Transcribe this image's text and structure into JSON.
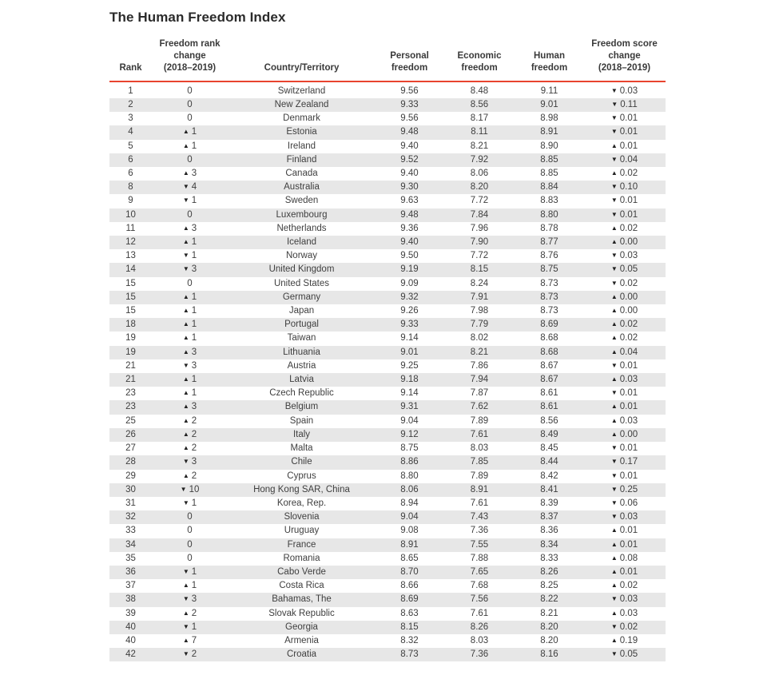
{
  "title": "The Human Freedom Index",
  "colors": {
    "accent_rule": "#e8442f",
    "row_stripe": "#e7e7e7",
    "text": "#3f3f3f",
    "triangle": "#222222"
  },
  "icons": {
    "up": "▲",
    "down": "▼"
  },
  "chart_data": {
    "type": "table",
    "title": "The Human Freedom Index",
    "columns": [
      "Rank",
      "Freedom rank\nchange\n(2018–2019)",
      "Country/Territory",
      "Personal\nfreedom",
      "Economic\nfreedom",
      "Human\nfreedom",
      "Freedom score\nchange\n(2018–2019)"
    ],
    "rows": [
      {
        "rank": "1",
        "rank_change": {
          "dir": "none",
          "value": "0"
        },
        "country": "Switzerland",
        "personal": "9.56",
        "economic": "8.48",
        "human": "9.11",
        "score_change": {
          "dir": "down",
          "value": "0.03"
        }
      },
      {
        "rank": "2",
        "rank_change": {
          "dir": "none",
          "value": "0"
        },
        "country": "New Zealand",
        "personal": "9.33",
        "economic": "8.56",
        "human": "9.01",
        "score_change": {
          "dir": "down",
          "value": "0.11"
        }
      },
      {
        "rank": "3",
        "rank_change": {
          "dir": "none",
          "value": "0"
        },
        "country": "Denmark",
        "personal": "9.56",
        "economic": "8.17",
        "human": "8.98",
        "score_change": {
          "dir": "down",
          "value": "0.01"
        }
      },
      {
        "rank": "4",
        "rank_change": {
          "dir": "up",
          "value": "1"
        },
        "country": "Estonia",
        "personal": "9.48",
        "economic": "8.11",
        "human": "8.91",
        "score_change": {
          "dir": "down",
          "value": "0.01"
        }
      },
      {
        "rank": "5",
        "rank_change": {
          "dir": "up",
          "value": "1"
        },
        "country": "Ireland",
        "personal": "9.40",
        "economic": "8.21",
        "human": "8.90",
        "score_change": {
          "dir": "up",
          "value": "0.01"
        }
      },
      {
        "rank": "6",
        "rank_change": {
          "dir": "none",
          "value": "0"
        },
        "country": "Finland",
        "personal": "9.52",
        "economic": "7.92",
        "human": "8.85",
        "score_change": {
          "dir": "down",
          "value": "0.04"
        }
      },
      {
        "rank": "6",
        "rank_change": {
          "dir": "up",
          "value": "3"
        },
        "country": "Canada",
        "personal": "9.40",
        "economic": "8.06",
        "human": "8.85",
        "score_change": {
          "dir": "up",
          "value": "0.02"
        }
      },
      {
        "rank": "8",
        "rank_change": {
          "dir": "down",
          "value": "4"
        },
        "country": "Australia",
        "personal": "9.30",
        "economic": "8.20",
        "human": "8.84",
        "score_change": {
          "dir": "down",
          "value": "0.10"
        }
      },
      {
        "rank": "9",
        "rank_change": {
          "dir": "down",
          "value": "1"
        },
        "country": "Sweden",
        "personal": "9.63",
        "economic": "7.72",
        "human": "8.83",
        "score_change": {
          "dir": "down",
          "value": "0.01"
        }
      },
      {
        "rank": "10",
        "rank_change": {
          "dir": "none",
          "value": "0"
        },
        "country": "Luxembourg",
        "personal": "9.48",
        "economic": "7.84",
        "human": "8.80",
        "score_change": {
          "dir": "down",
          "value": "0.01"
        }
      },
      {
        "rank": "11",
        "rank_change": {
          "dir": "up",
          "value": "3"
        },
        "country": "Netherlands",
        "personal": "9.36",
        "economic": "7.96",
        "human": "8.78",
        "score_change": {
          "dir": "up",
          "value": "0.02"
        }
      },
      {
        "rank": "12",
        "rank_change": {
          "dir": "up",
          "value": "1"
        },
        "country": "Iceland",
        "personal": "9.40",
        "economic": "7.90",
        "human": "8.77",
        "score_change": {
          "dir": "up",
          "value": "0.00"
        }
      },
      {
        "rank": "13",
        "rank_change": {
          "dir": "down",
          "value": "1"
        },
        "country": "Norway",
        "personal": "9.50",
        "economic": "7.72",
        "human": "8.76",
        "score_change": {
          "dir": "down",
          "value": "0.03"
        }
      },
      {
        "rank": "14",
        "rank_change": {
          "dir": "down",
          "value": "3"
        },
        "country": "United Kingdom",
        "personal": "9.19",
        "economic": "8.15",
        "human": "8.75",
        "score_change": {
          "dir": "down",
          "value": "0.05"
        }
      },
      {
        "rank": "15",
        "rank_change": {
          "dir": "none",
          "value": "0"
        },
        "country": "United States",
        "personal": "9.09",
        "economic": "8.24",
        "human": "8.73",
        "score_change": {
          "dir": "down",
          "value": "0.02"
        }
      },
      {
        "rank": "15",
        "rank_change": {
          "dir": "up",
          "value": "1"
        },
        "country": "Germany",
        "personal": "9.32",
        "economic": "7.91",
        "human": "8.73",
        "score_change": {
          "dir": "up",
          "value": "0.00"
        }
      },
      {
        "rank": "15",
        "rank_change": {
          "dir": "up",
          "value": "1"
        },
        "country": "Japan",
        "personal": "9.26",
        "economic": "7.98",
        "human": "8.73",
        "score_change": {
          "dir": "up",
          "value": "0.00"
        }
      },
      {
        "rank": "18",
        "rank_change": {
          "dir": "up",
          "value": "1"
        },
        "country": "Portugal",
        "personal": "9.33",
        "economic": "7.79",
        "human": "8.69",
        "score_change": {
          "dir": "up",
          "value": "0.02"
        }
      },
      {
        "rank": "19",
        "rank_change": {
          "dir": "up",
          "value": "1"
        },
        "country": "Taiwan",
        "personal": "9.14",
        "economic": "8.02",
        "human": "8.68",
        "score_change": {
          "dir": "up",
          "value": "0.02"
        }
      },
      {
        "rank": "19",
        "rank_change": {
          "dir": "up",
          "value": "3"
        },
        "country": "Lithuania",
        "personal": "9.01",
        "economic": "8.21",
        "human": "8.68",
        "score_change": {
          "dir": "up",
          "value": "0.04"
        }
      },
      {
        "rank": "21",
        "rank_change": {
          "dir": "down",
          "value": "3"
        },
        "country": "Austria",
        "personal": "9.25",
        "economic": "7.86",
        "human": "8.67",
        "score_change": {
          "dir": "down",
          "value": "0.01"
        }
      },
      {
        "rank": "21",
        "rank_change": {
          "dir": "up",
          "value": "1"
        },
        "country": "Latvia",
        "personal": "9.18",
        "economic": "7.94",
        "human": "8.67",
        "score_change": {
          "dir": "up",
          "value": "0.03"
        }
      },
      {
        "rank": "23",
        "rank_change": {
          "dir": "up",
          "value": "1"
        },
        "country": "Czech Republic",
        "personal": "9.14",
        "economic": "7.87",
        "human": "8.61",
        "score_change": {
          "dir": "down",
          "value": "0.01"
        }
      },
      {
        "rank": "23",
        "rank_change": {
          "dir": "up",
          "value": "3"
        },
        "country": "Belgium",
        "personal": "9.31",
        "economic": "7.62",
        "human": "8.61",
        "score_change": {
          "dir": "up",
          "value": "0.01"
        }
      },
      {
        "rank": "25",
        "rank_change": {
          "dir": "up",
          "value": "2"
        },
        "country": "Spain",
        "personal": "9.04",
        "economic": "7.89",
        "human": "8.56",
        "score_change": {
          "dir": "up",
          "value": "0.03"
        }
      },
      {
        "rank": "26",
        "rank_change": {
          "dir": "up",
          "value": "2"
        },
        "country": "Italy",
        "personal": "9.12",
        "economic": "7.61",
        "human": "8.49",
        "score_change": {
          "dir": "up",
          "value": "0.00"
        }
      },
      {
        "rank": "27",
        "rank_change": {
          "dir": "up",
          "value": "2"
        },
        "country": "Malta",
        "personal": "8.75",
        "economic": "8.03",
        "human": "8.45",
        "score_change": {
          "dir": "down",
          "value": "0.01"
        }
      },
      {
        "rank": "28",
        "rank_change": {
          "dir": "down",
          "value": "3"
        },
        "country": "Chile",
        "personal": "8.86",
        "economic": "7.85",
        "human": "8.44",
        "score_change": {
          "dir": "down",
          "value": "0.17"
        }
      },
      {
        "rank": "29",
        "rank_change": {
          "dir": "up",
          "value": "2"
        },
        "country": "Cyprus",
        "personal": "8.80",
        "economic": "7.89",
        "human": "8.42",
        "score_change": {
          "dir": "down",
          "value": "0.01"
        }
      },
      {
        "rank": "30",
        "rank_change": {
          "dir": "down",
          "value": "10"
        },
        "country": "Hong Kong SAR, China",
        "personal": "8.06",
        "economic": "8.91",
        "human": "8.41",
        "score_change": {
          "dir": "down",
          "value": "0.25"
        }
      },
      {
        "rank": "31",
        "rank_change": {
          "dir": "down",
          "value": "1"
        },
        "country": "Korea, Rep.",
        "personal": "8.94",
        "economic": "7.61",
        "human": "8.39",
        "score_change": {
          "dir": "down",
          "value": "0.06"
        }
      },
      {
        "rank": "32",
        "rank_change": {
          "dir": "none",
          "value": "0"
        },
        "country": "Slovenia",
        "personal": "9.04",
        "economic": "7.43",
        "human": "8.37",
        "score_change": {
          "dir": "down",
          "value": "0.03"
        }
      },
      {
        "rank": "33",
        "rank_change": {
          "dir": "none",
          "value": "0"
        },
        "country": "Uruguay",
        "personal": "9.08",
        "economic": "7.36",
        "human": "8.36",
        "score_change": {
          "dir": "up",
          "value": "0.01"
        }
      },
      {
        "rank": "34",
        "rank_change": {
          "dir": "none",
          "value": "0"
        },
        "country": "France",
        "personal": "8.91",
        "economic": "7.55",
        "human": "8.34",
        "score_change": {
          "dir": "up",
          "value": "0.01"
        }
      },
      {
        "rank": "35",
        "rank_change": {
          "dir": "none",
          "value": "0"
        },
        "country": "Romania",
        "personal": "8.65",
        "economic": "7.88",
        "human": "8.33",
        "score_change": {
          "dir": "up",
          "value": "0.08"
        }
      },
      {
        "rank": "36",
        "rank_change": {
          "dir": "down",
          "value": "1"
        },
        "country": "Cabo Verde",
        "personal": "8.70",
        "economic": "7.65",
        "human": "8.26",
        "score_change": {
          "dir": "up",
          "value": "0.01"
        }
      },
      {
        "rank": "37",
        "rank_change": {
          "dir": "up",
          "value": "1"
        },
        "country": "Costa Rica",
        "personal": "8.66",
        "economic": "7.68",
        "human": "8.25",
        "score_change": {
          "dir": "up",
          "value": "0.02"
        }
      },
      {
        "rank": "38",
        "rank_change": {
          "dir": "down",
          "value": "3"
        },
        "country": "Bahamas, The",
        "personal": "8.69",
        "economic": "7.56",
        "human": "8.22",
        "score_change": {
          "dir": "down",
          "value": "0.03"
        }
      },
      {
        "rank": "39",
        "rank_change": {
          "dir": "up",
          "value": "2"
        },
        "country": "Slovak Republic",
        "personal": "8.63",
        "economic": "7.61",
        "human": "8.21",
        "score_change": {
          "dir": "up",
          "value": "0.03"
        }
      },
      {
        "rank": "40",
        "rank_change": {
          "dir": "down",
          "value": "1"
        },
        "country": "Georgia",
        "personal": "8.15",
        "economic": "8.26",
        "human": "8.20",
        "score_change": {
          "dir": "down",
          "value": "0.02"
        }
      },
      {
        "rank": "40",
        "rank_change": {
          "dir": "up",
          "value": "7"
        },
        "country": "Armenia",
        "personal": "8.32",
        "economic": "8.03",
        "human": "8.20",
        "score_change": {
          "dir": "up",
          "value": "0.19"
        }
      },
      {
        "rank": "42",
        "rank_change": {
          "dir": "down",
          "value": "2"
        },
        "country": "Croatia",
        "personal": "8.73",
        "economic": "7.36",
        "human": "8.16",
        "score_change": {
          "dir": "down",
          "value": "0.05"
        }
      }
    ]
  }
}
